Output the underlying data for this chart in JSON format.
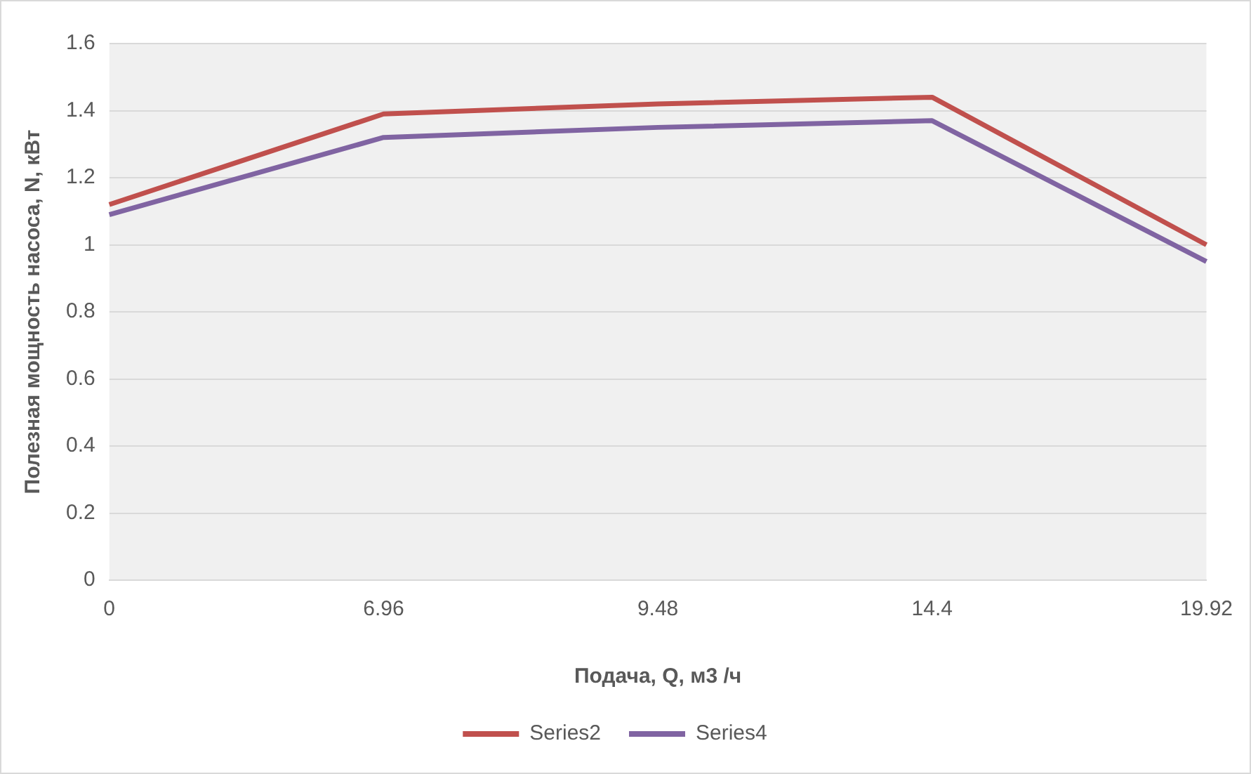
{
  "chart_data": {
    "type": "line",
    "xlabel": "Подача, Q, м3 /ч",
    "ylabel": "Полезная мощность насоса, N, кВт",
    "categories": [
      "0",
      "6.96",
      "9.48",
      "14.4",
      "19.92"
    ],
    "series": [
      {
        "name": "Series2",
        "color": "#c0504d",
        "values": [
          1.12,
          1.39,
          1.42,
          1.44,
          1.0
        ]
      },
      {
        "name": "Series4",
        "color": "#8064a2",
        "values": [
          1.09,
          1.32,
          1.35,
          1.37,
          0.95
        ]
      }
    ],
    "ylim": [
      0,
      1.6
    ],
    "yticks": [
      0,
      0.2,
      0.4,
      0.6,
      0.8,
      1,
      1.2,
      1.4,
      1.6
    ],
    "grid": "y",
    "legend": "bottom",
    "marker": "none",
    "line_style": "solid"
  }
}
